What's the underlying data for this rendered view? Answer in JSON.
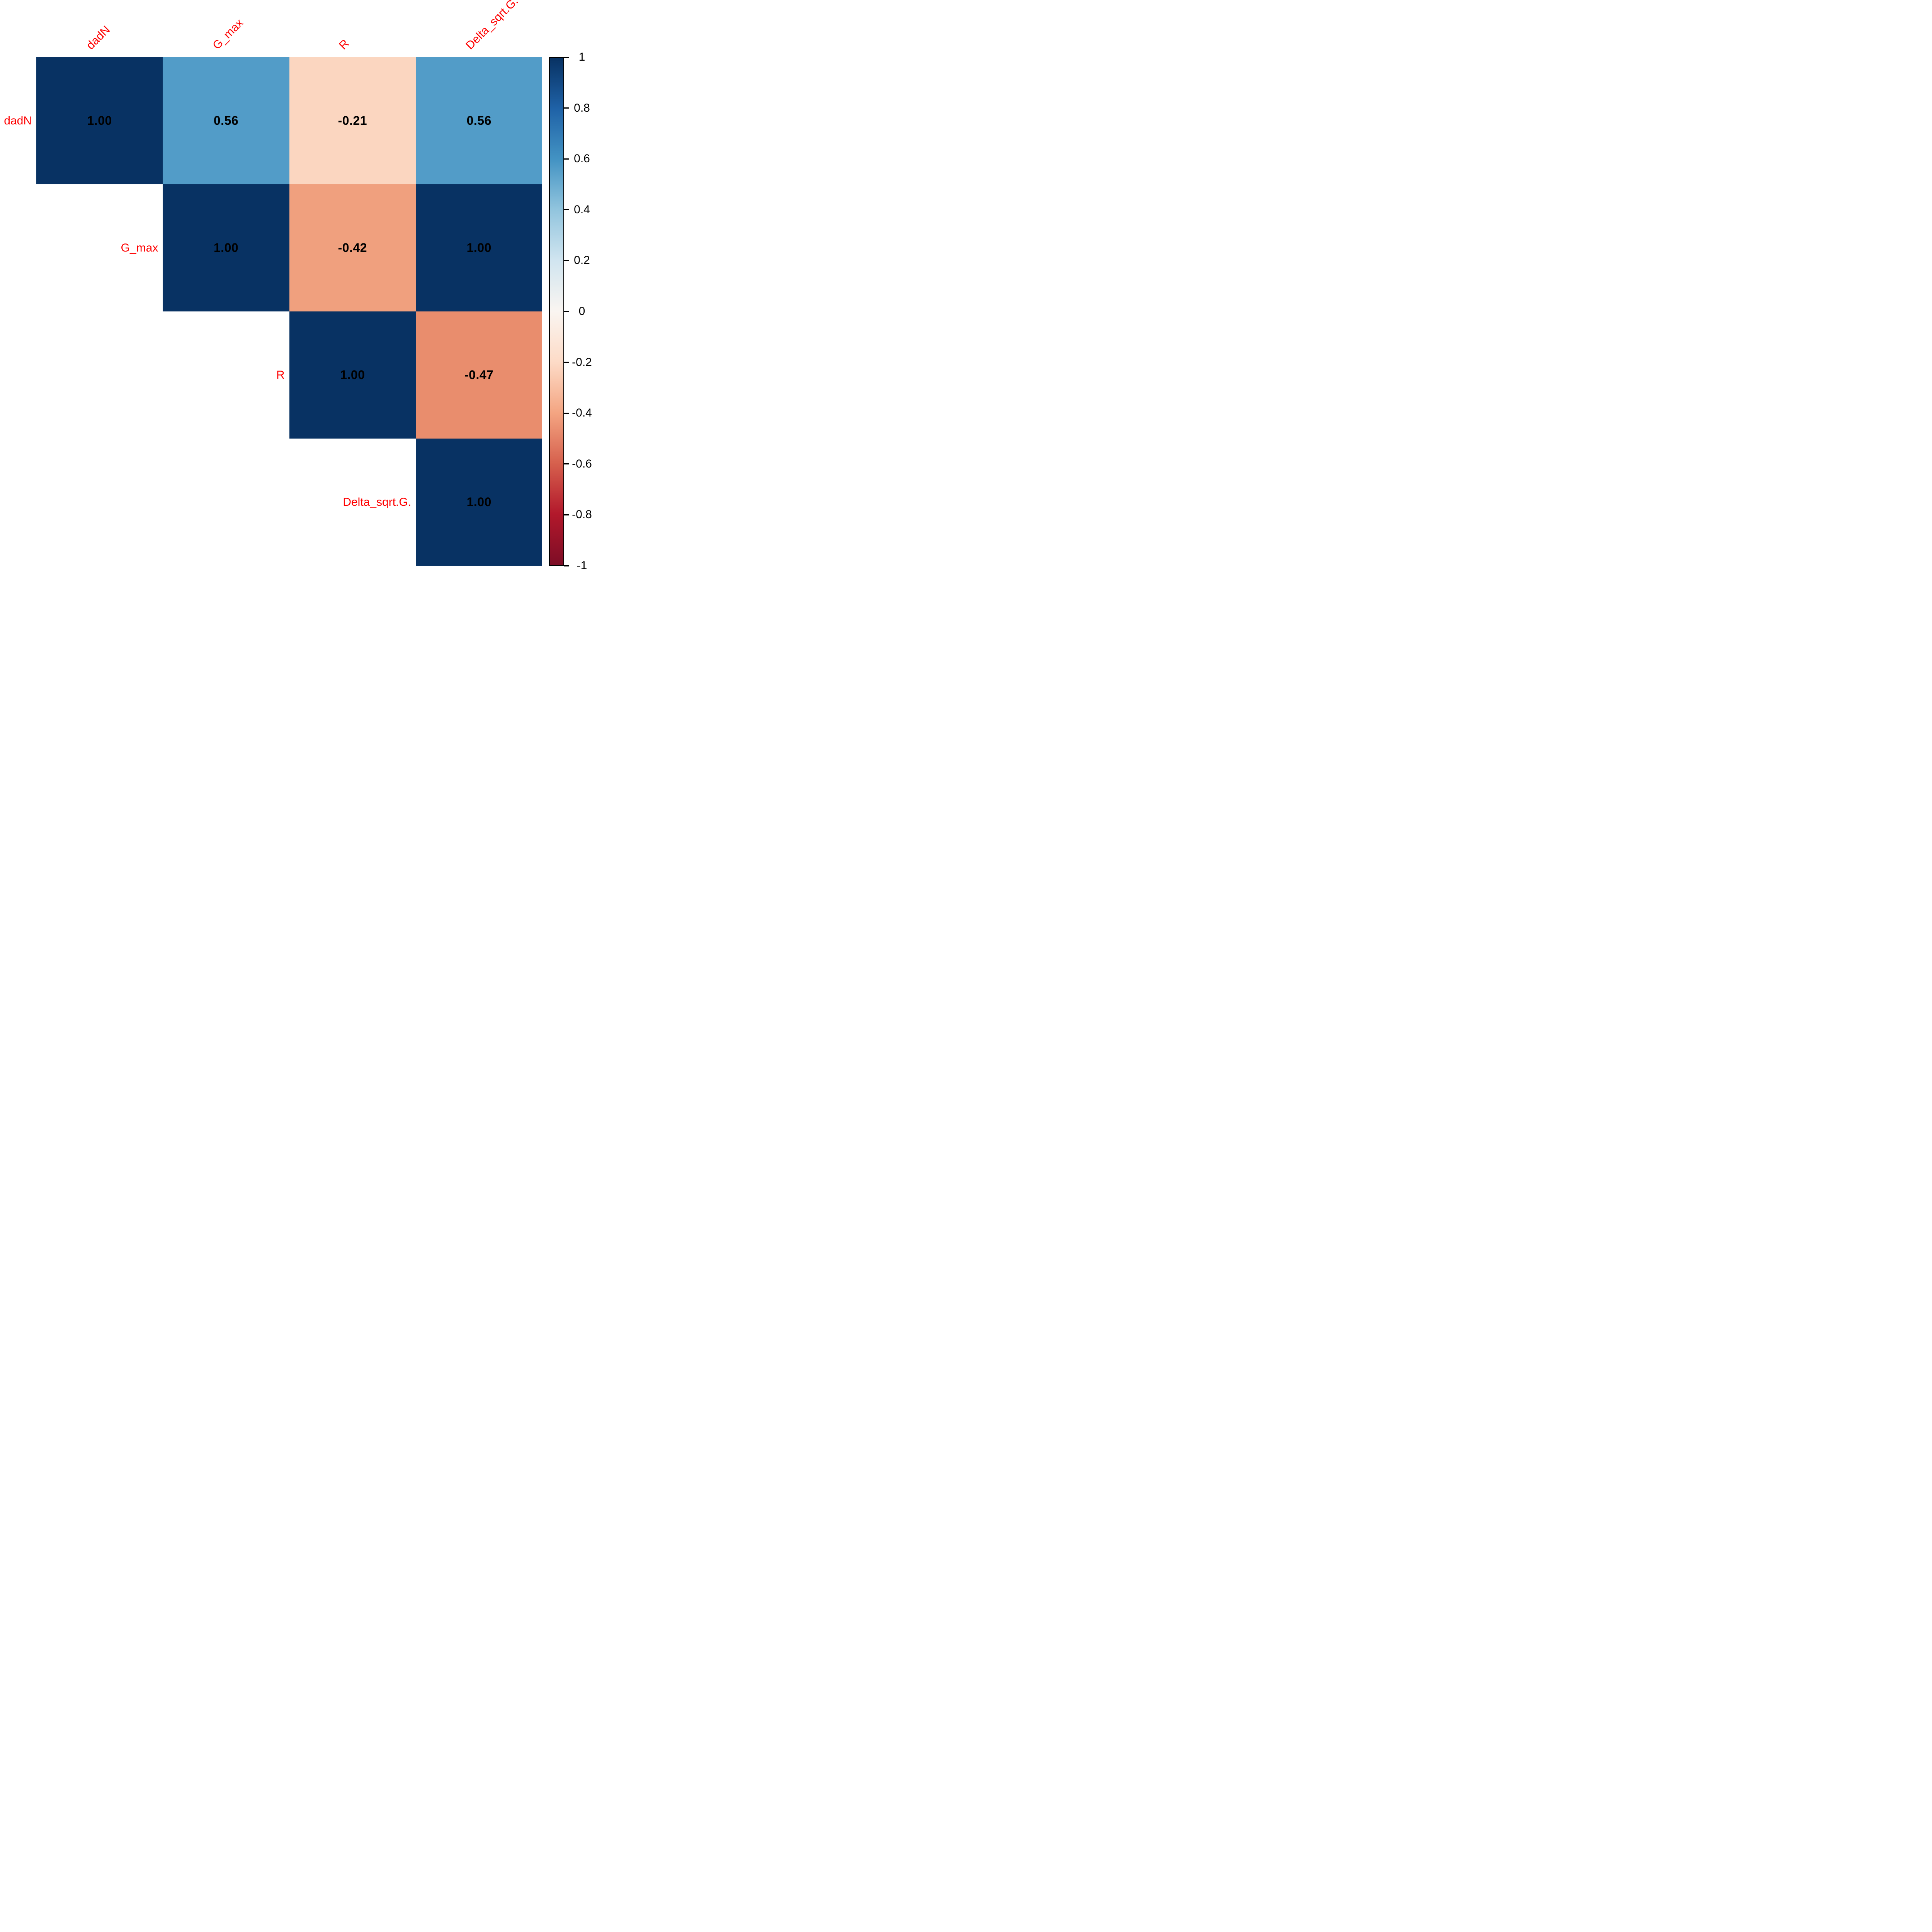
{
  "chart_data": {
    "type": "heatmap",
    "subtype": "correlation-matrix-upper-triangle",
    "title": "",
    "variables": [
      "dadN",
      "G_max",
      "R",
      "Delta_sqrt.G."
    ],
    "matrix": [
      [
        1.0,
        0.56,
        -0.21,
        0.56
      ],
      [
        null,
        1.0,
        -0.42,
        1.0
      ],
      [
        null,
        null,
        1.0,
        -0.47
      ],
      [
        null,
        null,
        null,
        1.0
      ]
    ],
    "cell_labels": [
      [
        "1.00",
        "0.56",
        "-0.21",
        "0.56"
      ],
      [
        null,
        "1.00",
        "-0.42",
        "1.00"
      ],
      [
        null,
        null,
        "1.00",
        "-0.47"
      ],
      [
        null,
        null,
        null,
        "1.00"
      ]
    ],
    "cell_colors": [
      [
        "#083263",
        "#529cc8",
        "#fbd6c0",
        "#529cc8"
      ],
      [
        null,
        "#083263",
        "#f0a07e",
        "#083263"
      ],
      [
        null,
        null,
        "#083263",
        "#e98d6d"
      ],
      [
        null,
        null,
        null,
        "#083263"
      ]
    ],
    "colorbar": {
      "range": [
        -1,
        1
      ],
      "ticks": [
        "1",
        "0.8",
        "0.6",
        "0.4",
        "0.2",
        "0",
        "-0.2",
        "-0.4",
        "-0.6",
        "-0.8",
        "-1"
      ],
      "gradient_stops_top_to_bottom": [
        "#083263",
        "#1f62a7",
        "#4393c3",
        "#92c5de",
        "#d1e5f0",
        "#faf5f1",
        "#fddbc7",
        "#f4a582",
        "#d6604d",
        "#b2182b",
        "#7d0d26"
      ],
      "legend_position": "right"
    },
    "grid": false,
    "colors": {
      "label_color": "#ff0000",
      "value_text_color": "#000000",
      "tick_text_color": "#000000",
      "tick_mark_color": "#000000",
      "colorbar_border": "#000000",
      "background": "#ffffff"
    }
  }
}
